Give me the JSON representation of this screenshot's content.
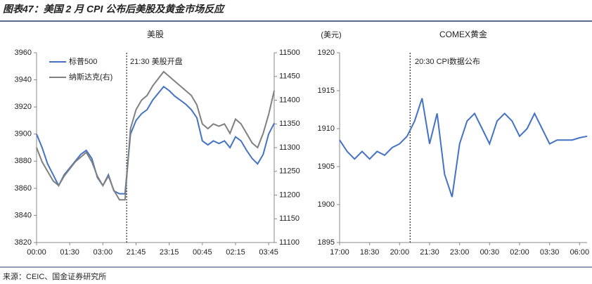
{
  "title": "图表47：美国 2 月 CPI 公布后美股及黄金市场反应",
  "source": "来源：CEIC、国金证券研究所",
  "chart_data": [
    {
      "type": "line",
      "title": "美股",
      "annotation": "21:30 美股开盘",
      "categories": [
        "00:00",
        null,
        null,
        null,
        null,
        null,
        "01:30",
        null,
        null,
        null,
        null,
        null,
        "03:00",
        null,
        null,
        null,
        null,
        null,
        "21:45",
        null,
        null,
        null,
        null,
        null,
        "23:15",
        null,
        null,
        null,
        null,
        null,
        "00:45",
        null,
        null,
        null,
        null,
        null,
        "02:15",
        null,
        null,
        null,
        null,
        null,
        "03:45",
        null
      ],
      "ylim": [
        3820,
        3960
      ],
      "yticks": [
        3820,
        3840,
        3860,
        3880,
        3900,
        3920,
        3940,
        3960
      ],
      "y2lim": [
        11100,
        11500
      ],
      "y2ticks": [
        11100,
        11150,
        11200,
        11250,
        11300,
        11350,
        11400,
        11450,
        11500
      ],
      "series": [
        {
          "name": "标普500",
          "color": "#4472c4",
          "values": [
            3900,
            3890,
            3878,
            3870,
            3862,
            3870,
            3875,
            3880,
            3885,
            3888,
            3882,
            3868,
            3862,
            3870,
            3858,
            3856,
            3856,
            3900,
            3910,
            3915,
            3918,
            3925,
            3930,
            3935,
            3932,
            3928,
            3925,
            3922,
            3918,
            3912,
            3895,
            3892,
            3895,
            3893,
            3895,
            3890,
            3898,
            3895,
            3888,
            3882,
            3878,
            3885,
            3900,
            3908
          ]
        },
        {
          "name": "纳斯达克(右)",
          "color": "#808080",
          "axis": "y2",
          "values": [
            11300,
            11270,
            11250,
            11230,
            11220,
            11240,
            11255,
            11270,
            11280,
            11290,
            11270,
            11240,
            11220,
            11240,
            11210,
            11190,
            11190,
            11340,
            11380,
            11400,
            11410,
            11430,
            11445,
            11460,
            11450,
            11440,
            11430,
            11420,
            11410,
            11390,
            11350,
            11340,
            11350,
            11345,
            11350,
            11330,
            11360,
            11350,
            11330,
            11310,
            11300,
            11330,
            11370,
            11420
          ]
        }
      ]
    },
    {
      "type": "line",
      "title": "COMEX黄金",
      "ylabel": "(美元)",
      "annotation": "20:30 CPI数据公布",
      "categories": [
        "17:00",
        null,
        null,
        null,
        "18:30",
        null,
        null,
        null,
        "20:00",
        null,
        null,
        null,
        "21:30",
        null,
        null,
        null,
        "23:00",
        null,
        null,
        null,
        "00:30",
        null,
        null,
        null,
        "02:00",
        null,
        null,
        null,
        "03:30",
        null,
        null,
        null,
        "06:00",
        null
      ],
      "ylim": [
        1895,
        1920
      ],
      "yticks": [
        1895,
        1900,
        1905,
        1910,
        1915,
        1920
      ],
      "series": [
        {
          "name": "COMEX黄金",
          "color": "#4472c4",
          "values": [
            1908.5,
            1907,
            1906,
            1907,
            1906,
            1907,
            1906.5,
            1907.5,
            1908,
            1909,
            1911,
            1914,
            1908,
            1912,
            1904,
            1901,
            1908,
            1911,
            1912,
            1910,
            1908,
            1911,
            1912,
            1911,
            1909,
            1910,
            1912,
            1910,
            1908,
            1908.5,
            1908.5,
            1908.5,
            1908.8,
            1909
          ]
        }
      ]
    }
  ]
}
